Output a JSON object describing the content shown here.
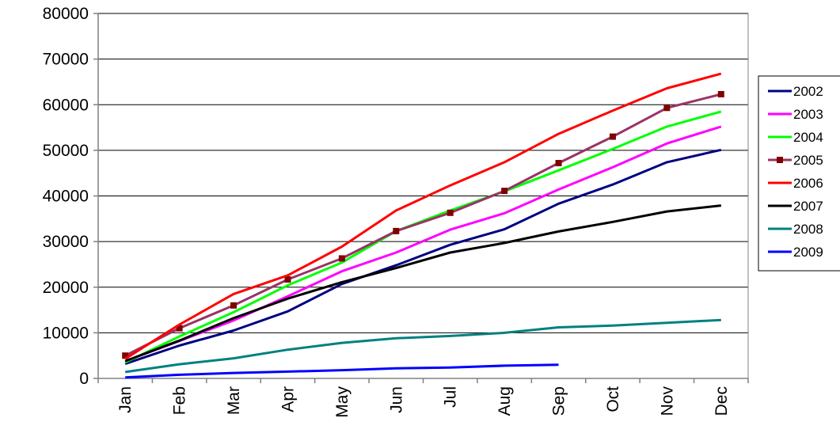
{
  "chart_data": {
    "type": "line",
    "title": "",
    "xlabel": "",
    "ylabel": "",
    "categories": [
      "Jan",
      "Feb",
      "Mar",
      "Apr",
      "May",
      "Jun",
      "Jul",
      "Aug",
      "Sep",
      "Oct",
      "Nov",
      "Dec"
    ],
    "ylim": [
      0,
      80000
    ],
    "yticks": [
      0,
      10000,
      20000,
      30000,
      40000,
      50000,
      60000,
      70000,
      80000
    ],
    "grid": "horizontal",
    "legend_position": "right",
    "series": [
      {
        "name": "2002",
        "color": "#000080",
        "marker": "none",
        "values": [
          3200,
          7200,
          10500,
          14700,
          20700,
          24800,
          29300,
          32700,
          38300,
          42500,
          47400,
          50100
        ]
      },
      {
        "name": "2003",
        "color": "#ff00ff",
        "marker": "none",
        "values": [
          3800,
          8200,
          12700,
          18000,
          23500,
          27600,
          32600,
          36200,
          41400,
          46300,
          51500,
          55200
        ]
      },
      {
        "name": "2004",
        "color": "#00ff00",
        "marker": "none",
        "values": [
          3500,
          9200,
          14500,
          20400,
          25400,
          32300,
          36800,
          41000,
          45600,
          50300,
          55200,
          58500
        ]
      },
      {
        "name": "2005",
        "color": "#993366",
        "marker": "square",
        "marker_color": "#800000",
        "values": [
          5000,
          11000,
          16000,
          21700,
          26300,
          32300,
          36300,
          41100,
          47200,
          53000,
          59300,
          62300
        ]
      },
      {
        "name": "2006",
        "color": "#ff0000",
        "marker": "none",
        "values": [
          4300,
          11800,
          18500,
          22600,
          28900,
          36800,
          42300,
          47400,
          53600,
          58700,
          63600,
          66800
        ]
      },
      {
        "name": "2007",
        "color": "#000000",
        "marker": "none",
        "values": [
          3800,
          8300,
          13200,
          17500,
          21100,
          24200,
          27600,
          29700,
          32200,
          34300,
          36600,
          37900
        ]
      },
      {
        "name": "2008",
        "color": "#008080",
        "marker": "none",
        "values": [
          1400,
          3100,
          4400,
          6300,
          7800,
          8800,
          9300,
          10000,
          11200,
          11600,
          12200,
          12800
        ]
      },
      {
        "name": "2009",
        "color": "#0000ff",
        "marker": "none",
        "values": [
          200,
          800,
          1200,
          1500,
          1800,
          2200,
          2400,
          2800,
          3000,
          null,
          null,
          null
        ]
      }
    ]
  }
}
